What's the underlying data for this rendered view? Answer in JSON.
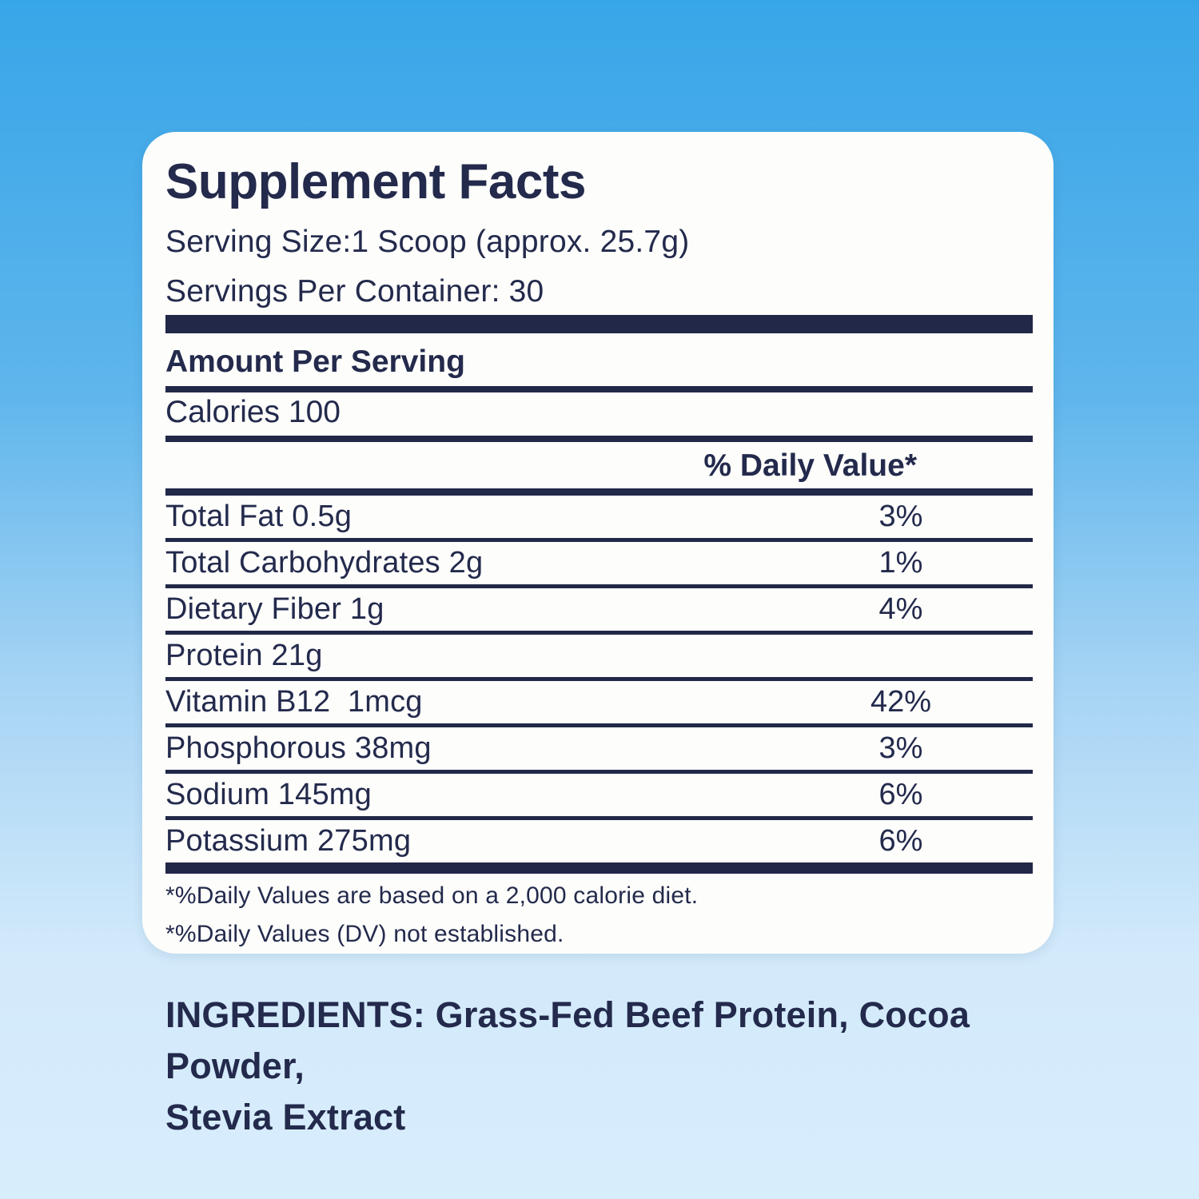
{
  "background": {
    "top_color": "#37a6e8",
    "bottom_color": "#d8edfc"
  },
  "colors": {
    "navy_text": "#232a4c",
    "divider_navy": "#222848",
    "panel_bg": "#fdfdfb"
  },
  "panel": {
    "title": "Supplement Facts",
    "serving_size": "Serving Size:1 Scoop (approx. 25.7g)",
    "servings_per_container": "Servings Per Container: 30",
    "amount_per_serving": "Amount Per Serving",
    "calories": "Calories 100",
    "daily_value_header": "% Daily Value*",
    "nutrients": [
      {
        "label": "Total Fat 0.5g",
        "dv": "3%"
      },
      {
        "label": "Total Carbohydrates 2g",
        "dv": "1%"
      },
      {
        "label": "Dietary Fiber 1g",
        "dv": "4%"
      },
      {
        "label": "Protein 21g",
        "dv": ""
      },
      {
        "label": "Vitamin B12  1mcg",
        "dv": "42%"
      },
      {
        "label": "Phosphorous 38mg",
        "dv": "3%"
      },
      {
        "label": "Sodium 145mg",
        "dv": "6%"
      },
      {
        "label": "Potassium 275mg",
        "dv": "6%"
      }
    ],
    "footnotes": [
      "*%Daily Values are based on a 2,000 calorie diet.",
      "*%Daily Values (DV) not established."
    ]
  },
  "ingredients": {
    "line1": "INGREDIENTS: Grass-Fed Beef Protein, Cocoa Powder,",
    "line2": "Stevia Extract"
  }
}
